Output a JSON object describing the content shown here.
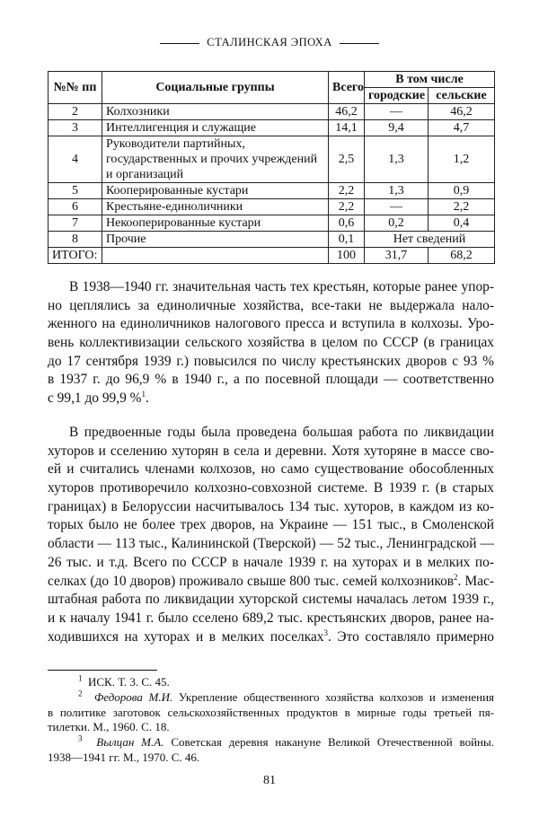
{
  "running_head": "СТАЛИНСКАЯ ЭПОХА",
  "table": {
    "headers": {
      "num": "№№ пп",
      "group": "Социальные группы",
      "total": "Всего",
      "including": "В том числе",
      "urban": "городские",
      "rural": "сельские"
    },
    "rows": [
      {
        "num": "2",
        "group": [
          "Колхозники"
        ],
        "total": "46,2",
        "urban": "—",
        "rural": "46,2"
      },
      {
        "num": "3",
        "group": [
          "Интеллигенция и служащие"
        ],
        "total": "14,1",
        "urban": "9,4",
        "rural": "4,7"
      },
      {
        "num": "4",
        "group": [
          "Руководители партийных,",
          "государственных и прочих учреждений",
          "и организаций"
        ],
        "total": "2,5",
        "urban": "1,3",
        "rural": "1,2"
      },
      {
        "num": "5",
        "group": [
          "Кооперированные кустари"
        ],
        "total": "2,2",
        "urban": "1,3",
        "rural": "0,9"
      },
      {
        "num": "6",
        "group": [
          "Крестьяне-единоличники"
        ],
        "total": "2,2",
        "urban": "—",
        "rural": "2,2"
      },
      {
        "num": "7",
        "group": [
          "Некооперированные кустари"
        ],
        "total": "0,6",
        "urban": "0,2",
        "rural": "0,4"
      }
    ],
    "row8": {
      "num": "8",
      "group": "Прочие",
      "total": "0,1",
      "note": "Нет сведений"
    },
    "total_row": {
      "label": "ИТОГО:",
      "total": "100",
      "urban": "31,7",
      "rural": "68,2"
    }
  },
  "paragraph1": [
    "В 1938—1940 гг. значительная часть тех крестьян, которые ранее упор-",
    "но цеплялись за единоличные хозяйства, все-таки не выдержала нало-",
    "женного на единоличников налогового пресса и вступила в колхозы. Уро-",
    "вень коллективизации сельского хозяйства в целом по СССР (в границах",
    "до 17 сентября 1939 г.) повысился по числу крестьянских дворов с 93 %",
    "в 1937 г. до 96,9 % в 1940 г., а по посевной площади — соответственно",
    "с 99,1 до 99,9 %"
  ],
  "paragraph1_sup": "1",
  "paragraph1_end": ".",
  "paragraph2": [
    "В предвоенные годы была проведена большая работа по ликвидации",
    "хуторов и сселению хуторян в села и деревни. Хотя хуторяне в массе сво-",
    "ей и считались членами колхозов, но само существование обособленных",
    "хуторов противоречило колхозно-совхозной системе. В 1939 г. (в старых",
    "границах) в Белоруссии насчитывалось 134 тыс. хуторов, в каждом из ко-",
    "торых было не более трех дворов, на Украине — 151 тыс., в Смоленской",
    "области — 113 тыс., Калининской (Тверской) — 52 тыс., Ленинградской —",
    "26 тыс. и т.д. Всего по СССР в начале 1939 г. на хуторах и в мелких по-",
    "селках (до 10 дворов) проживало свыше 800 тыс. семей колхозников",
    "штабная работа по ликвидации хуторской системы началась летом 1939 г.,",
    "и к началу 1941 г. было сселено 689,2 тыс. крестьянских дворов, ранее на-",
    "ходившихся на хуторах и в мелких поселках"
  ],
  "paragraph2_sup2": "2",
  "paragraph2_line9_end": ". Мас-",
  "paragraph2_sup3": "3",
  "paragraph2_line12_end": ". Это составляло примерно",
  "footnotes": [
    {
      "num": "1",
      "author": "",
      "lines": [
        "ИСК. Т. 3. С. 45."
      ]
    },
    {
      "num": "2",
      "author": "Федорова М.И.",
      "lines": [
        " Укрепление общественного хозяйства колхозов и изменения",
        "в политике заготовок сельскохозяйственных продуктов в мирные годы третьей пя-",
        "тилетки. М., 1960. С. 18."
      ]
    },
    {
      "num": "3",
      "author": "Вылцан М.А.",
      "lines": [
        " Советская деревня накануне Великой Отечественной войны.",
        "1938—1941 гг. М., 1970. С. 46."
      ]
    }
  ],
  "page_number": "81"
}
